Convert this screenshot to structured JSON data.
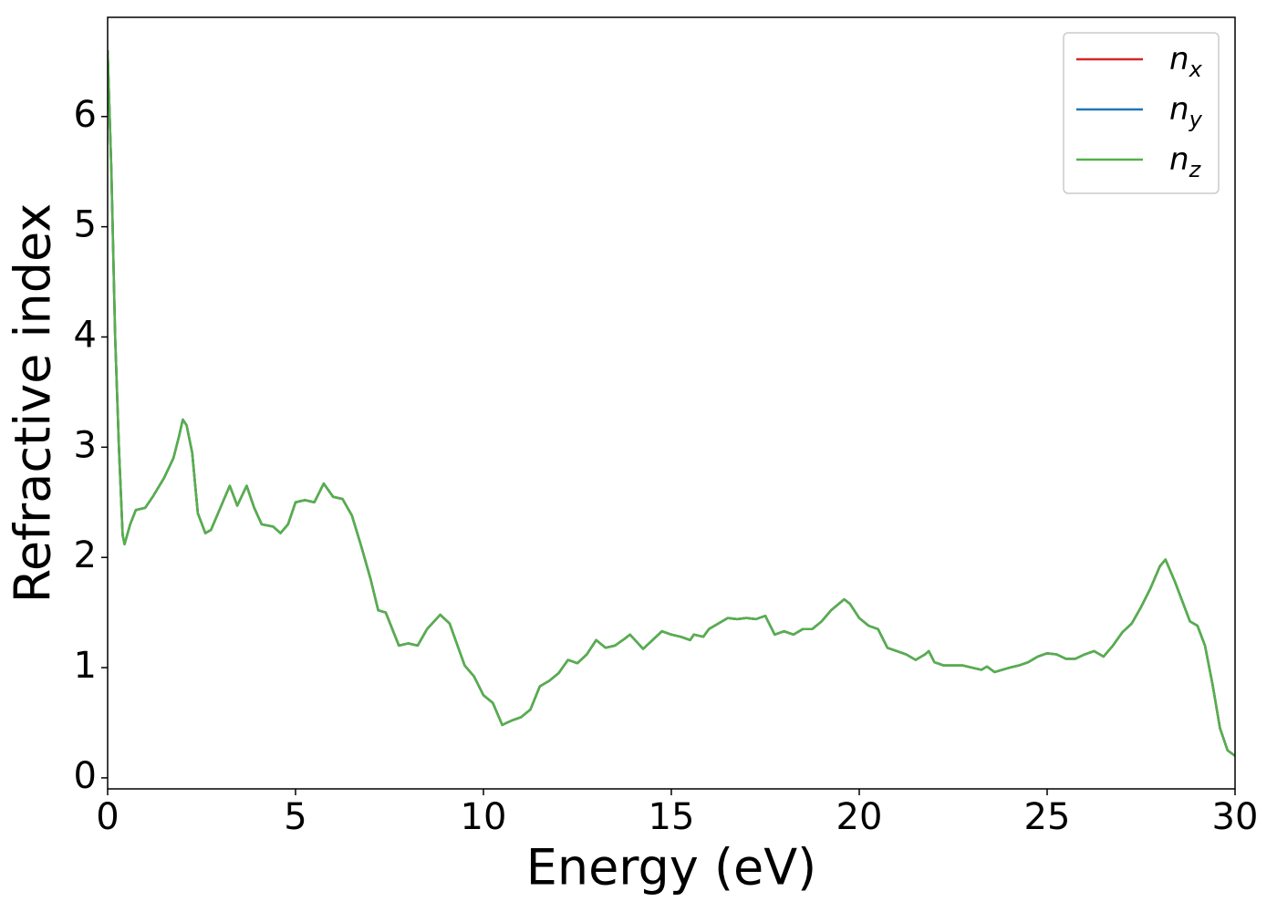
{
  "chart_data": {
    "type": "line",
    "xlabel": "Energy (eV)",
    "ylabel": "Refractive index",
    "xlim": [
      0,
      30
    ],
    "ylim": [
      -0.1,
      6.9
    ],
    "xticks": [
      0,
      5,
      10,
      15,
      20,
      25,
      30
    ],
    "yticks": [
      0,
      1,
      2,
      3,
      4,
      5,
      6
    ],
    "grid": false,
    "legend": "upper right",
    "x": [
      0,
      0.1,
      0.2,
      0.3,
      0.4,
      0.45,
      0.6,
      0.75,
      1.0,
      1.2,
      1.5,
      1.75,
      1.9,
      2.0,
      2.1,
      2.25,
      2.4,
      2.6,
      2.75,
      3.0,
      3.25,
      3.45,
      3.7,
      3.9,
      4.1,
      4.4,
      4.6,
      4.8,
      5.0,
      5.25,
      5.5,
      5.75,
      6.0,
      6.25,
      6.5,
      6.75,
      7.0,
      7.2,
      7.4,
      7.75,
      8.0,
      8.25,
      8.5,
      8.85,
      9.1,
      9.5,
      9.75,
      10.0,
      10.25,
      10.5,
      10.75,
      11.0,
      11.25,
      11.5,
      11.75,
      12.0,
      12.25,
      12.5,
      12.75,
      13.0,
      13.25,
      13.5,
      13.75,
      13.9,
      14.25,
      14.5,
      14.75,
      15.0,
      15.25,
      15.5,
      15.6,
      15.85,
      16.0,
      16.5,
      16.75,
      17.0,
      17.25,
      17.5,
      17.75,
      18.0,
      18.25,
      18.5,
      18.75,
      19.0,
      19.25,
      19.6,
      19.75,
      20.0,
      20.25,
      20.5,
      20.75,
      21.0,
      21.25,
      21.5,
      21.75,
      21.85,
      22.0,
      22.25,
      22.5,
      22.75,
      23.0,
      23.25,
      23.4,
      23.6,
      24.0,
      24.25,
      24.5,
      24.75,
      25.0,
      25.25,
      25.5,
      25.75,
      26.0,
      26.25,
      26.5,
      26.75,
      27.0,
      27.25,
      27.5,
      27.75,
      28.0,
      28.15,
      28.4,
      28.6,
      28.8,
      29.0,
      29.2,
      29.4,
      29.6,
      29.8,
      30.0
    ],
    "series": [
      {
        "name": "nx",
        "color": "#d62728",
        "values": [
          6.6,
          5.5,
          4.0,
          3.0,
          2.2,
          2.12,
          2.3,
          2.43,
          2.45,
          2.55,
          2.72,
          2.9,
          3.1,
          3.25,
          3.2,
          2.95,
          2.4,
          2.22,
          2.25,
          2.45,
          2.65,
          2.47,
          2.65,
          2.45,
          2.3,
          2.28,
          2.22,
          2.3,
          2.5,
          2.52,
          2.5,
          2.67,
          2.55,
          2.53,
          2.38,
          2.1,
          1.8,
          1.52,
          1.5,
          1.2,
          1.22,
          1.2,
          1.35,
          1.48,
          1.4,
          1.02,
          0.92,
          0.75,
          0.68,
          0.48,
          0.52,
          0.55,
          0.62,
          0.83,
          0.88,
          0.95,
          1.07,
          1.04,
          1.12,
          1.25,
          1.18,
          1.2,
          1.26,
          1.3,
          1.17,
          1.25,
          1.33,
          1.3,
          1.28,
          1.25,
          1.3,
          1.28,
          1.35,
          1.45,
          1.44,
          1.45,
          1.44,
          1.47,
          1.3,
          1.33,
          1.3,
          1.35,
          1.35,
          1.42,
          1.52,
          1.62,
          1.58,
          1.45,
          1.38,
          1.35,
          1.18,
          1.15,
          1.12,
          1.07,
          1.12,
          1.15,
          1.05,
          1.02,
          1.02,
          1.02,
          1.0,
          0.98,
          1.01,
          0.96,
          1.0,
          1.02,
          1.05,
          1.1,
          1.13,
          1.12,
          1.08,
          1.08,
          1.12,
          1.15,
          1.1,
          1.2,
          1.32,
          1.4,
          1.55,
          1.72,
          1.92,
          1.98,
          1.78,
          1.6,
          1.42,
          1.38,
          1.2,
          0.85,
          0.45,
          0.25,
          0.2
        ]
      },
      {
        "name": "ny",
        "color": "#1f77b4",
        "values": [
          6.6,
          5.5,
          4.0,
          3.0,
          2.2,
          2.12,
          2.3,
          2.43,
          2.45,
          2.55,
          2.72,
          2.9,
          3.1,
          3.25,
          3.2,
          2.95,
          2.4,
          2.22,
          2.25,
          2.45,
          2.65,
          2.47,
          2.65,
          2.45,
          2.3,
          2.28,
          2.22,
          2.3,
          2.5,
          2.52,
          2.5,
          2.67,
          2.55,
          2.53,
          2.38,
          2.1,
          1.8,
          1.52,
          1.5,
          1.2,
          1.22,
          1.2,
          1.35,
          1.48,
          1.4,
          1.02,
          0.92,
          0.75,
          0.68,
          0.48,
          0.52,
          0.55,
          0.62,
          0.83,
          0.88,
          0.95,
          1.07,
          1.04,
          1.12,
          1.25,
          1.18,
          1.2,
          1.26,
          1.3,
          1.17,
          1.25,
          1.33,
          1.3,
          1.28,
          1.25,
          1.3,
          1.28,
          1.35,
          1.45,
          1.44,
          1.45,
          1.44,
          1.47,
          1.3,
          1.33,
          1.3,
          1.35,
          1.35,
          1.42,
          1.52,
          1.62,
          1.58,
          1.45,
          1.38,
          1.35,
          1.18,
          1.15,
          1.12,
          1.07,
          1.12,
          1.15,
          1.05,
          1.02,
          1.02,
          1.02,
          1.0,
          0.98,
          1.01,
          0.96,
          1.0,
          1.02,
          1.05,
          1.1,
          1.13,
          1.12,
          1.08,
          1.08,
          1.12,
          1.15,
          1.1,
          1.2,
          1.32,
          1.4,
          1.55,
          1.72,
          1.92,
          1.98,
          1.78,
          1.6,
          1.42,
          1.38,
          1.2,
          0.85,
          0.45,
          0.25,
          0.2
        ]
      },
      {
        "name": "nz",
        "color": "#55b04a",
        "values": [
          6.6,
          5.5,
          4.0,
          3.0,
          2.2,
          2.12,
          2.3,
          2.43,
          2.45,
          2.55,
          2.72,
          2.9,
          3.1,
          3.25,
          3.2,
          2.95,
          2.4,
          2.22,
          2.25,
          2.45,
          2.65,
          2.47,
          2.65,
          2.45,
          2.3,
          2.28,
          2.22,
          2.3,
          2.5,
          2.52,
          2.5,
          2.67,
          2.55,
          2.53,
          2.38,
          2.1,
          1.8,
          1.52,
          1.5,
          1.2,
          1.22,
          1.2,
          1.35,
          1.48,
          1.4,
          1.02,
          0.92,
          0.75,
          0.68,
          0.48,
          0.52,
          0.55,
          0.62,
          0.83,
          0.88,
          0.95,
          1.07,
          1.04,
          1.12,
          1.25,
          1.18,
          1.2,
          1.26,
          1.3,
          1.17,
          1.25,
          1.33,
          1.3,
          1.28,
          1.25,
          1.3,
          1.28,
          1.35,
          1.45,
          1.44,
          1.45,
          1.44,
          1.47,
          1.3,
          1.33,
          1.3,
          1.35,
          1.35,
          1.42,
          1.52,
          1.62,
          1.58,
          1.45,
          1.38,
          1.35,
          1.18,
          1.15,
          1.12,
          1.07,
          1.12,
          1.15,
          1.05,
          1.02,
          1.02,
          1.02,
          1.0,
          0.98,
          1.01,
          0.96,
          1.0,
          1.02,
          1.05,
          1.1,
          1.13,
          1.12,
          1.08,
          1.08,
          1.12,
          1.15,
          1.1,
          1.2,
          1.32,
          1.4,
          1.55,
          1.72,
          1.92,
          1.98,
          1.78,
          1.6,
          1.42,
          1.38,
          1.2,
          0.85,
          0.45,
          0.25,
          0.2
        ]
      }
    ]
  }
}
